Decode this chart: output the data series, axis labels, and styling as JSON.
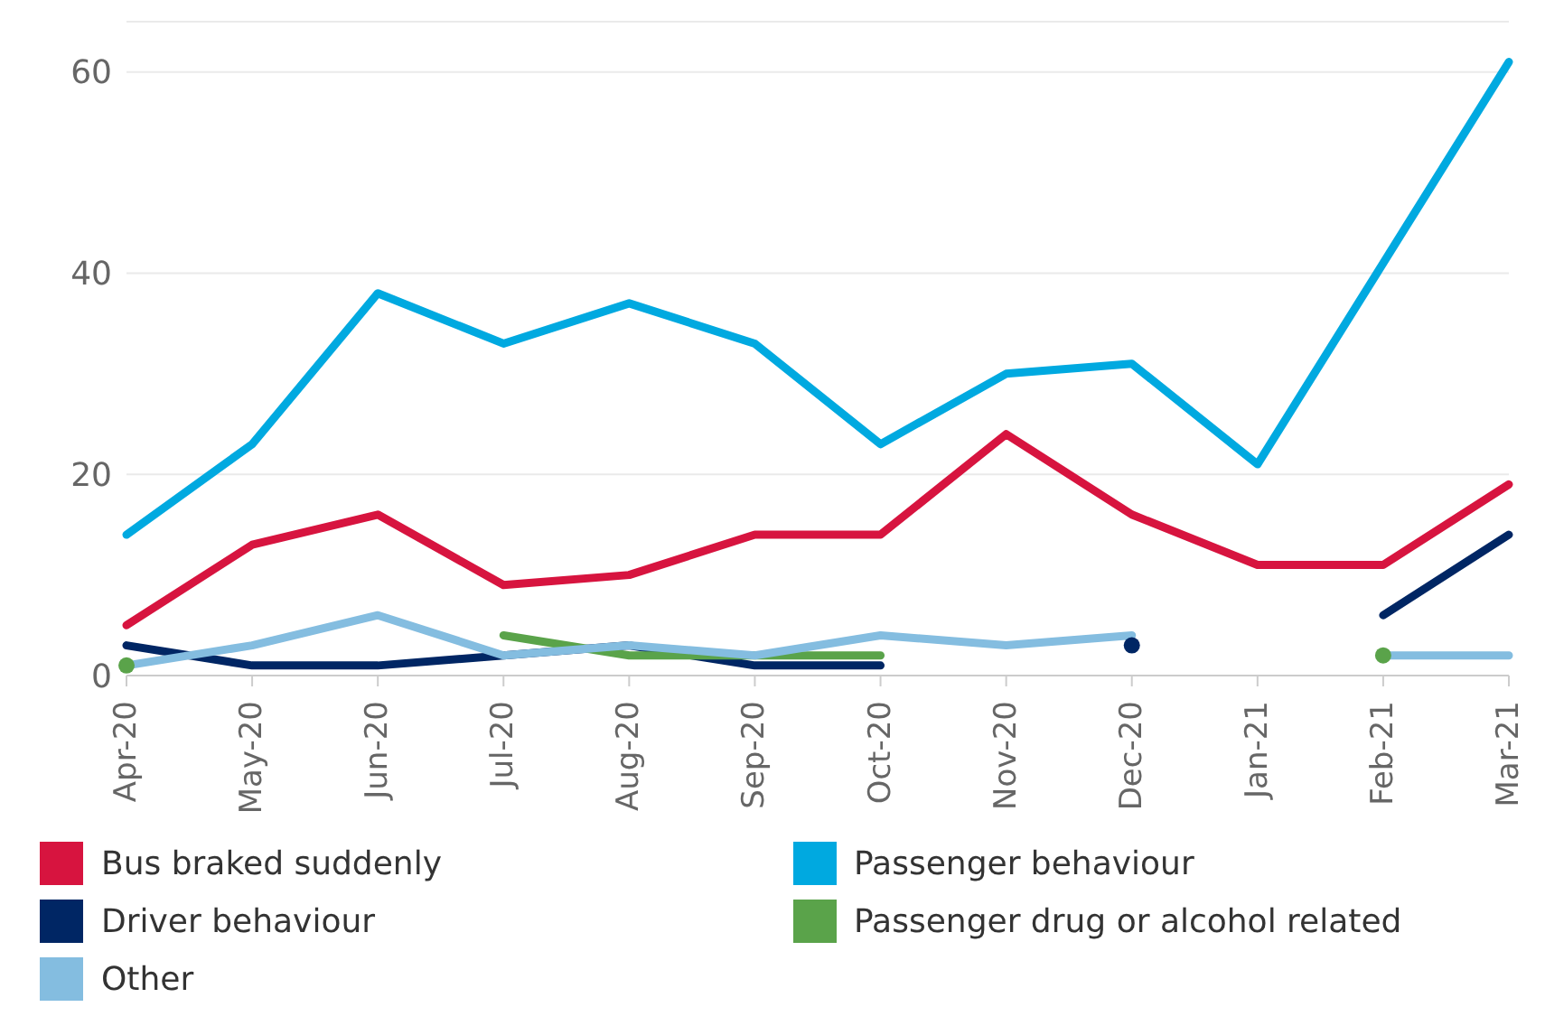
{
  "chart_data": {
    "type": "line",
    "categories": [
      "Apr-20",
      "May-20",
      "Jun-20",
      "Jul-20",
      "Aug-20",
      "Sep-20",
      "Oct-20",
      "Nov-20",
      "Dec-20",
      "Jan-21",
      "Feb-21",
      "Mar-21"
    ],
    "series": [
      {
        "name": "Bus braked suddenly",
        "color": "#d7143f",
        "values": [
          5,
          13,
          16,
          9,
          10,
          14,
          14,
          24,
          16,
          11,
          11,
          19
        ]
      },
      {
        "name": "Passenger behaviour",
        "color": "#00a9e0",
        "values": [
          14,
          23,
          38,
          33,
          37,
          33,
          23,
          30,
          31,
          21,
          41,
          61
        ]
      },
      {
        "name": "Driver behaviour",
        "color": "#002664",
        "values": [
          3,
          1,
          1,
          2,
          3,
          1,
          1,
          null,
          3,
          null,
          6,
          14
        ]
      },
      {
        "name": "Passenger drug or alcohol related",
        "color": "#5aa34a",
        "values": [
          1,
          null,
          null,
          4,
          2,
          2,
          2,
          null,
          null,
          null,
          2,
          null
        ]
      },
      {
        "name": "Other",
        "color": "#84bde0",
        "values": [
          1,
          3,
          6,
          2,
          3,
          2,
          4,
          3,
          4,
          null,
          2,
          2
        ]
      }
    ],
    "ylim": [
      0,
      65
    ],
    "yticks": [
      0,
      20,
      40,
      60
    ],
    "grid": "y",
    "legend": "bottom"
  }
}
